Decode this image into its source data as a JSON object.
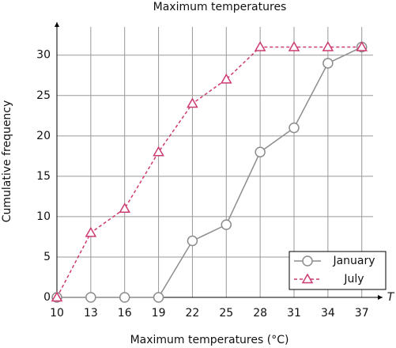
{
  "chart_data": {
    "type": "line",
    "title": "Maximum temperatures",
    "x_label": "Maximum temperatures (°C)",
    "y_label": "Cumulative frequency",
    "x_axis_symbol": "T",
    "x": [
      10,
      13,
      16,
      19,
      22,
      25,
      28,
      31,
      34,
      37
    ],
    "series": [
      {
        "name": "January",
        "color": "#8c8c8c",
        "marker": "circle",
        "dashed": false,
        "values": [
          0,
          0,
          0,
          0,
          7,
          9,
          18,
          21,
          29,
          31
        ]
      },
      {
        "name": "July",
        "color": "#cc3a72",
        "marker": "triangle",
        "dashed": true,
        "values": [
          0,
          8,
          11,
          18,
          24,
          27,
          31,
          31,
          31,
          31
        ]
      }
    ],
    "xlim": [
      10,
      38
    ],
    "ylim": [
      0,
      33.5
    ],
    "xticks": [
      10,
      13,
      16,
      19,
      22,
      25,
      28,
      31,
      34,
      37
    ],
    "yticks": [
      0,
      5,
      10,
      15,
      20,
      25,
      30
    ],
    "grid": true,
    "legend": "lower right"
  }
}
